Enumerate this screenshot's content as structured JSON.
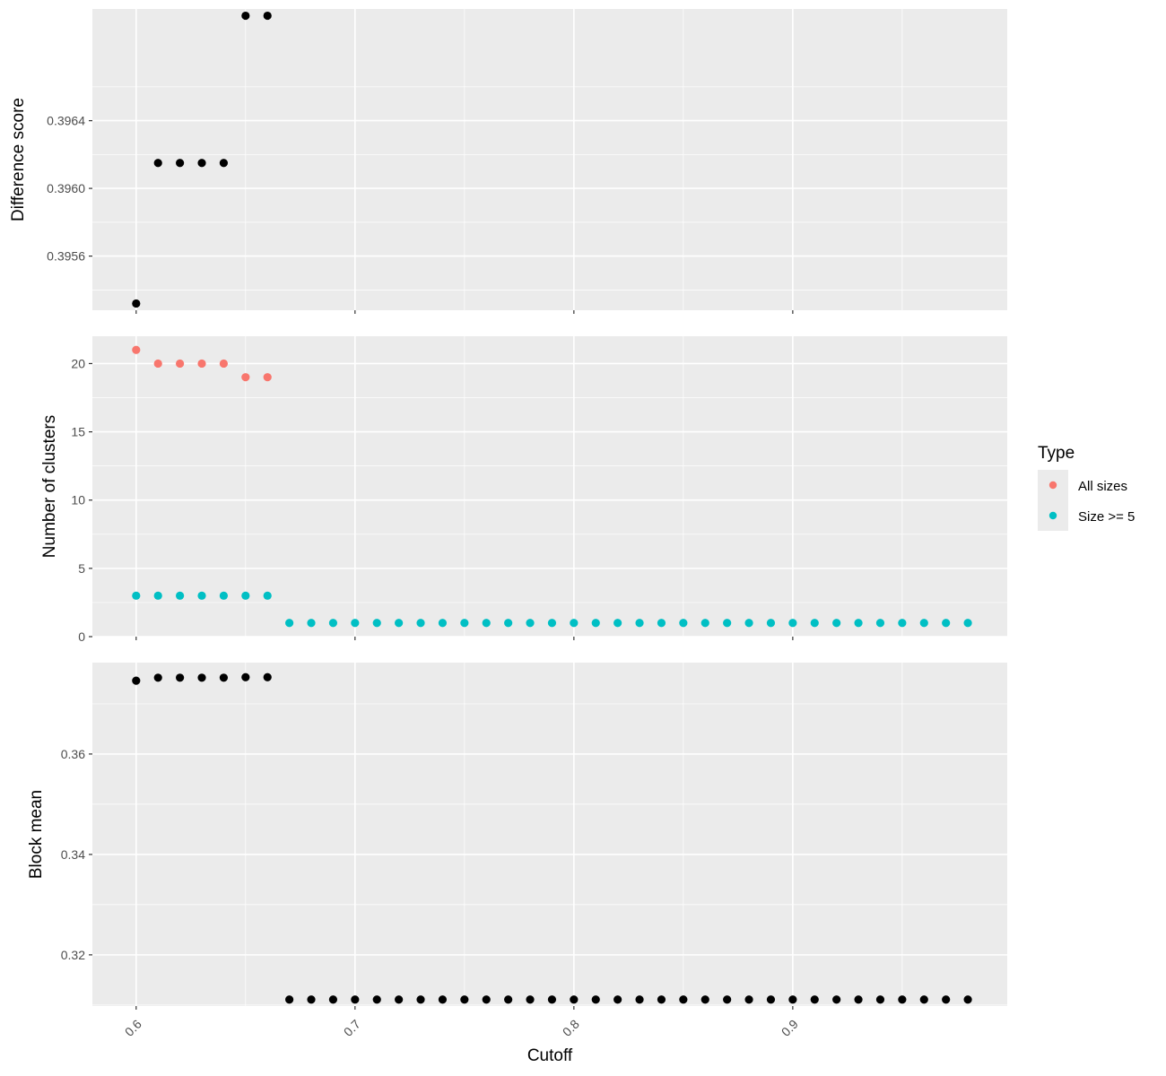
{
  "chart_data": [
    {
      "type": "scatter",
      "ylabel": "Difference score",
      "xlim": [
        0.58,
        0.998
      ],
      "ylim": [
        0.39528,
        0.39706
      ],
      "xticks": [
        0.6,
        0.7,
        0.8,
        0.9
      ],
      "yticks": [
        0.3956,
        0.396,
        0.3964
      ],
      "ytick_labels": [
        "0.3956",
        "0.3960",
        "0.3964"
      ],
      "series": [
        {
          "color": "#000000",
          "x": [
            0.6,
            0.61,
            0.62,
            0.63,
            0.64,
            0.65,
            0.66
          ],
          "y": [
            0.39532,
            0.39615,
            0.39615,
            0.39615,
            0.39615,
            0.39702,
            0.39702
          ]
        }
      ]
    },
    {
      "type": "scatter",
      "ylabel": "Number of clusters",
      "xlim": [
        0.58,
        0.998
      ],
      "ylim": [
        0,
        22
      ],
      "xticks": [
        0.6,
        0.7,
        0.8,
        0.9
      ],
      "yticks": [
        0,
        5,
        10,
        15,
        20
      ],
      "ytick_labels": [
        "0",
        "5",
        "10",
        "15",
        "20"
      ],
      "series": [
        {
          "name": "All sizes",
          "color": "#F8766D",
          "x": [
            0.6,
            0.61,
            0.62,
            0.63,
            0.64,
            0.65,
            0.66
          ],
          "y": [
            21,
            20,
            20,
            20,
            20,
            19,
            19
          ]
        },
        {
          "name": "Size >= 5",
          "color": "#00BFC4",
          "x": [
            0.6,
            0.61,
            0.62,
            0.63,
            0.64,
            0.65,
            0.66,
            0.67,
            0.68,
            0.69,
            0.7,
            0.71,
            0.72,
            0.73,
            0.74,
            0.75,
            0.76,
            0.77,
            0.78,
            0.79,
            0.8,
            0.81,
            0.82,
            0.83,
            0.84,
            0.85,
            0.86,
            0.87,
            0.88,
            0.89,
            0.9,
            0.91,
            0.92,
            0.93,
            0.94,
            0.95,
            0.96,
            0.97,
            0.98
          ],
          "y": [
            3,
            3,
            3,
            3,
            3,
            3,
            3,
            1,
            1,
            1,
            1,
            1,
            1,
            1,
            1,
            1,
            1,
            1,
            1,
            1,
            1,
            1,
            1,
            1,
            1,
            1,
            1,
            1,
            1,
            1,
            1,
            1,
            1,
            1,
            1,
            1,
            1,
            1,
            1
          ]
        }
      ]
    },
    {
      "type": "scatter",
      "ylabel": "Block mean",
      "xlabel": "Cutoff",
      "xlim": [
        0.58,
        0.998
      ],
      "ylim": [
        0.3098,
        0.3782
      ],
      "xticks": [
        0.6,
        0.7,
        0.8,
        0.9
      ],
      "xtick_labels": [
        "0.6",
        "0.7",
        "0.8",
        "0.9"
      ],
      "yticks": [
        0.32,
        0.34,
        0.36
      ],
      "ytick_labels": [
        "0.32",
        "0.34",
        "0.36"
      ],
      "series": [
        {
          "color": "#000000",
          "x": [
            0.6,
            0.61,
            0.62,
            0.63,
            0.64,
            0.65,
            0.66,
            0.67,
            0.68,
            0.69,
            0.7,
            0.71,
            0.72,
            0.73,
            0.74,
            0.75,
            0.76,
            0.77,
            0.78,
            0.79,
            0.8,
            0.81,
            0.82,
            0.83,
            0.84,
            0.85,
            0.86,
            0.87,
            0.88,
            0.89,
            0.9,
            0.91,
            0.92,
            0.93,
            0.94,
            0.95,
            0.96,
            0.97,
            0.98
          ],
          "y": [
            0.3746,
            0.3752,
            0.3752,
            0.3752,
            0.3752,
            0.3753,
            0.3753,
            0.3111,
            0.3111,
            0.3111,
            0.3111,
            0.3111,
            0.3111,
            0.3111,
            0.3111,
            0.3111,
            0.3111,
            0.3111,
            0.3111,
            0.3111,
            0.3111,
            0.3111,
            0.3111,
            0.3111,
            0.3111,
            0.3111,
            0.3111,
            0.3111,
            0.3111,
            0.3111,
            0.3111,
            0.3111,
            0.3111,
            0.3111,
            0.3111,
            0.3111,
            0.3111,
            0.3111,
            0.3111
          ]
        }
      ]
    }
  ],
  "legend": {
    "title": "Type",
    "items": [
      {
        "label": "All sizes",
        "color": "#F8766D"
      },
      {
        "label": "Size >= 5",
        "color": "#00BFC4"
      }
    ]
  }
}
